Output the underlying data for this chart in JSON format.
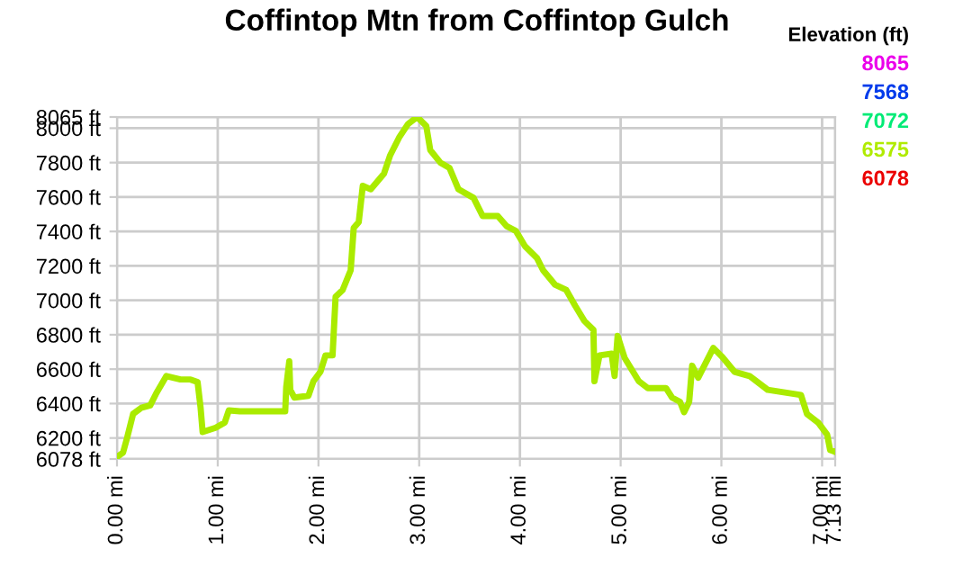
{
  "chart_data": {
    "type": "line",
    "title": "Coffintop Mtn from Coffintop Gulch",
    "x": [
      0.0,
      0.06,
      0.1,
      0.16,
      0.24,
      0.33,
      0.39,
      0.49,
      0.63,
      0.73,
      0.8,
      0.83,
      0.85,
      0.98,
      1.07,
      1.11,
      1.22,
      1.67,
      1.68,
      1.71,
      1.72,
      1.76,
      1.9,
      1.95,
      2.02,
      2.07,
      2.14,
      2.17,
      2.24,
      2.32,
      2.35,
      2.4,
      2.44,
      2.52,
      2.65,
      2.71,
      2.8,
      2.89,
      2.98,
      3.07,
      3.11,
      3.21,
      3.3,
      3.39,
      3.54,
      3.63,
      3.78,
      3.87,
      3.96,
      4.05,
      4.17,
      4.23,
      4.35,
      4.46,
      4.55,
      4.64,
      4.73,
      4.74,
      4.79,
      4.91,
      4.94,
      4.97,
      5.04,
      5.18,
      5.27,
      5.45,
      5.51,
      5.59,
      5.63,
      5.68,
      5.71,
      5.77,
      5.83,
      5.92,
      6.01,
      6.13,
      6.28,
      6.46,
      6.79,
      6.85,
      6.96,
      7.05,
      7.08,
      7.13
    ],
    "values": [
      6090,
      6115,
      6200,
      6340,
      6375,
      6390,
      6460,
      6560,
      6540,
      6540,
      6525,
      6375,
      6235,
      6260,
      6290,
      6360,
      6355,
      6355,
      6495,
      6645,
      6480,
      6435,
      6445,
      6530,
      6585,
      6680,
      6680,
      7020,
      7060,
      7175,
      7420,
      7455,
      7665,
      7645,
      7735,
      7840,
      7945,
      8025,
      8065,
      8013,
      7873,
      7800,
      7770,
      7645,
      7595,
      7490,
      7490,
      7430,
      7403,
      7315,
      7245,
      7175,
      7090,
      7060,
      6967,
      6880,
      6828,
      6530,
      6680,
      6690,
      6560,
      6793,
      6665,
      6530,
      6490,
      6490,
      6435,
      6410,
      6350,
      6410,
      6620,
      6550,
      6620,
      6723,
      6670,
      6585,
      6560,
      6480,
      6450,
      6340,
      6290,
      6220,
      6130,
      6120
    ],
    "xlim": [
      0,
      7.13
    ],
    "xticks": [
      {
        "value": 0,
        "label": "0.00 mi"
      },
      {
        "value": 1,
        "label": "1.00 mi"
      },
      {
        "value": 2,
        "label": "2.00 mi"
      },
      {
        "value": 3,
        "label": "3.00 mi"
      },
      {
        "value": 4,
        "label": "4.00 mi"
      },
      {
        "value": 5,
        "label": "5.00 mi"
      },
      {
        "value": 6,
        "label": "6.00 mi"
      },
      {
        "value": 7,
        "label": "7.00 mi"
      },
      {
        "value": 7.13,
        "label": "7.13 mi"
      }
    ],
    "ylim": [
      6078,
      8065
    ],
    "yticks": [
      {
        "value": 6078,
        "label": "6078 ft"
      },
      {
        "value": 6200,
        "label": "6200 ft"
      },
      {
        "value": 6400,
        "label": "6400 ft"
      },
      {
        "value": 6600,
        "label": "6600 ft"
      },
      {
        "value": 6800,
        "label": "6800 ft"
      },
      {
        "value": 7000,
        "label": "7000 ft"
      },
      {
        "value": 7200,
        "label": "7200 ft"
      },
      {
        "value": 7400,
        "label": "7400 ft"
      },
      {
        "value": 7600,
        "label": "7600 ft"
      },
      {
        "value": 7800,
        "label": "7800 ft"
      },
      {
        "value": 8000,
        "label": "8000 ft"
      },
      {
        "value": 8065,
        "label": "8065 ft"
      }
    ],
    "grid": true,
    "clabel": "Elevation (ft)",
    "annotations": [
      "8065",
      "7568",
      "7072",
      "6575",
      "6078"
    ]
  }
}
